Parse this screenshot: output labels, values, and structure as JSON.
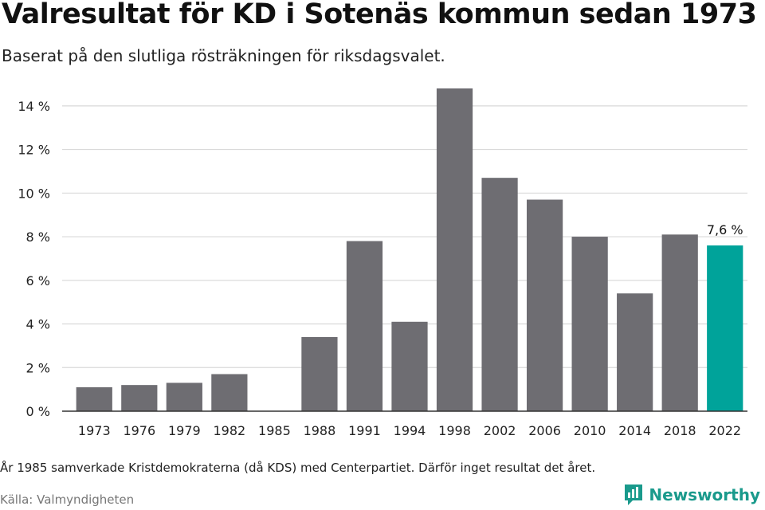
{
  "header": {
    "title": "Valresultat för KD i Sotenäs kommun sedan 1973",
    "subtitle": "Baserat på den slutliga rösträkningen för riksdagsvalet."
  },
  "footer": {
    "note": "År 1985 samverkade Kristdemokraterna (då KDS) med Centerpartiet. Därför inget resultat det året.",
    "source": "Källa: Valmyndigheten",
    "brand": "Newsworthy",
    "brand_icon": "newsworthy-logo-icon"
  },
  "colors": {
    "bar": "#6e6d72",
    "highlight": "#00a39a",
    "grid": "#d9d9d9",
    "axis": "#333333",
    "brand": "#1a9a8c"
  },
  "chart_data": {
    "type": "bar",
    "categories": [
      "1973",
      "1976",
      "1979",
      "1982",
      "1985",
      "1988",
      "1991",
      "1994",
      "1998",
      "2002",
      "2006",
      "2010",
      "2014",
      "2018",
      "2022"
    ],
    "values": [
      1.1,
      1.2,
      1.3,
      1.7,
      null,
      3.4,
      7.8,
      4.1,
      14.8,
      10.7,
      9.7,
      8.0,
      5.4,
      8.1,
      7.6
    ],
    "highlight_index": 14,
    "data_labels": [
      {
        "index": 14,
        "text": "7,6 %"
      }
    ],
    "y_ticks": [
      0,
      2,
      4,
      6,
      8,
      10,
      12,
      14
    ],
    "y_tick_labels": [
      "0 %",
      "2 %",
      "4 %",
      "6 %",
      "8 %",
      "10 %",
      "12 %",
      "14 %"
    ],
    "ylim": [
      0,
      15.2
    ],
    "grid": true,
    "legend": "none"
  }
}
